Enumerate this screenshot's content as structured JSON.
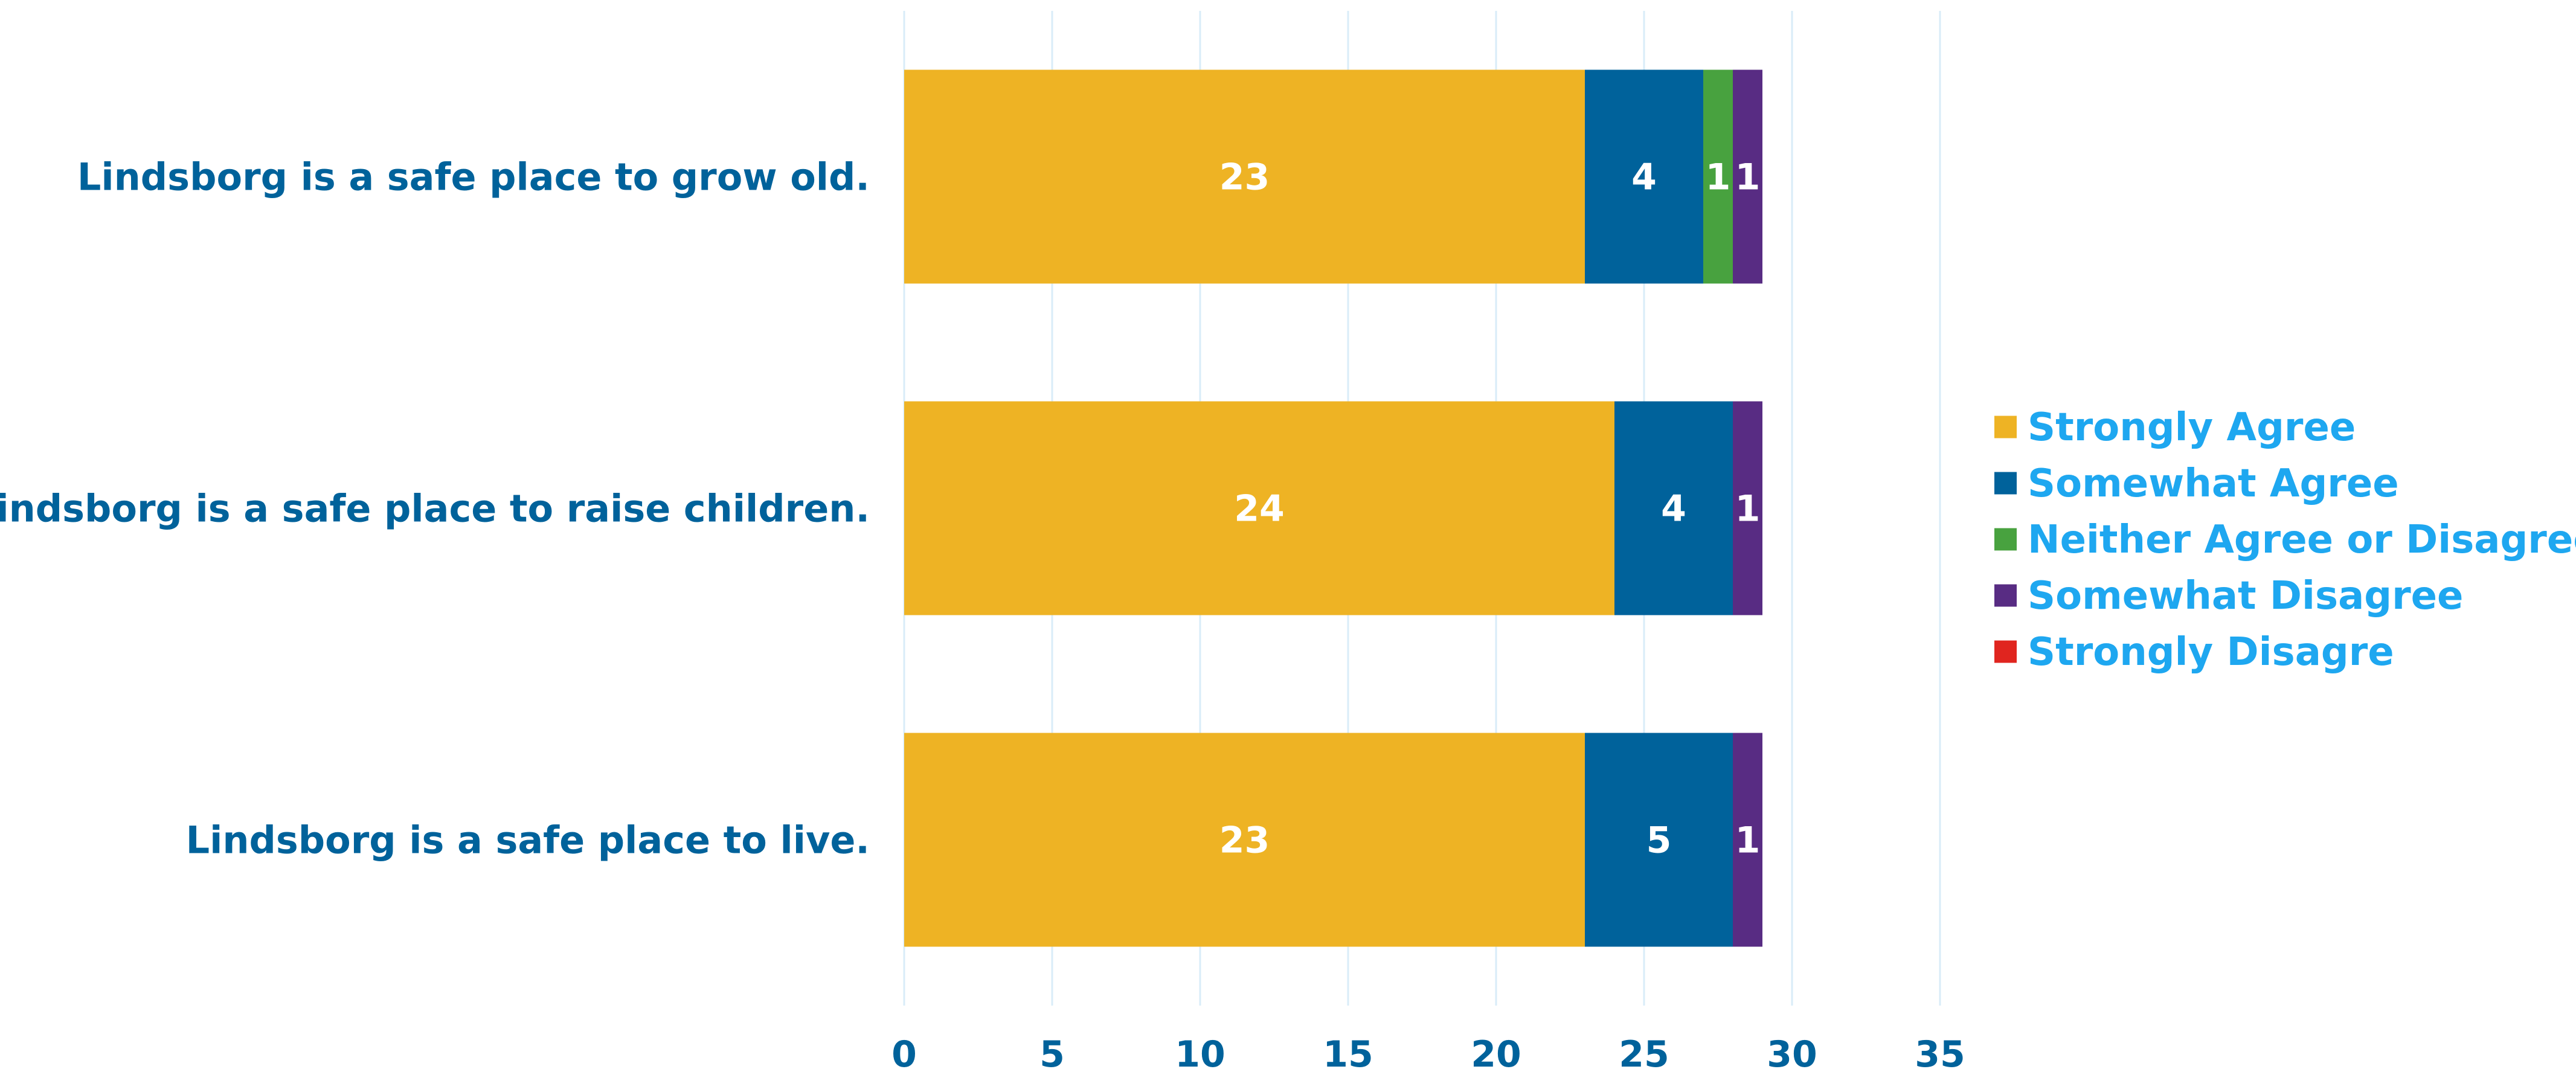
{
  "chart_data": {
    "type": "bar",
    "orientation": "horizontal",
    "stacked": true,
    "title": "",
    "xlabel": "",
    "ylabel": "",
    "xlim": [
      0,
      35
    ],
    "x_ticks": [
      0,
      5,
      10,
      15,
      20,
      25,
      30,
      35
    ],
    "grid": "vertical",
    "legend_position": "right",
    "categories": [
      "Lindsborg is a safe place to grow old.",
      "Lindsborg is a safe place to raise children.",
      "Lindsborg is a safe place to live."
    ],
    "series": [
      {
        "name": "Strongly Agree",
        "color": "#EEB324",
        "values": [
          23,
          24,
          23
        ]
      },
      {
        "name": "Somewhat Agree",
        "color": "#00629B",
        "values": [
          4,
          4,
          5
        ]
      },
      {
        "name": "Neither Agree or Disagree",
        "color": "#48A23F",
        "values": [
          1,
          0,
          0
        ]
      },
      {
        "name": "Somewhat Disagree",
        "color": "#582C83",
        "values": [
          1,
          1,
          1
        ]
      },
      {
        "name": "Strongly Disagre",
        "color": "#E0251F",
        "values": [
          0,
          0,
          0
        ]
      }
    ],
    "colors": {
      "category_label": "#00629B",
      "tick_label": "#00629B",
      "legend_text": "#1EA7F0",
      "gridline": "#D9ECF8",
      "data_label": "#FFFFFF"
    }
  }
}
